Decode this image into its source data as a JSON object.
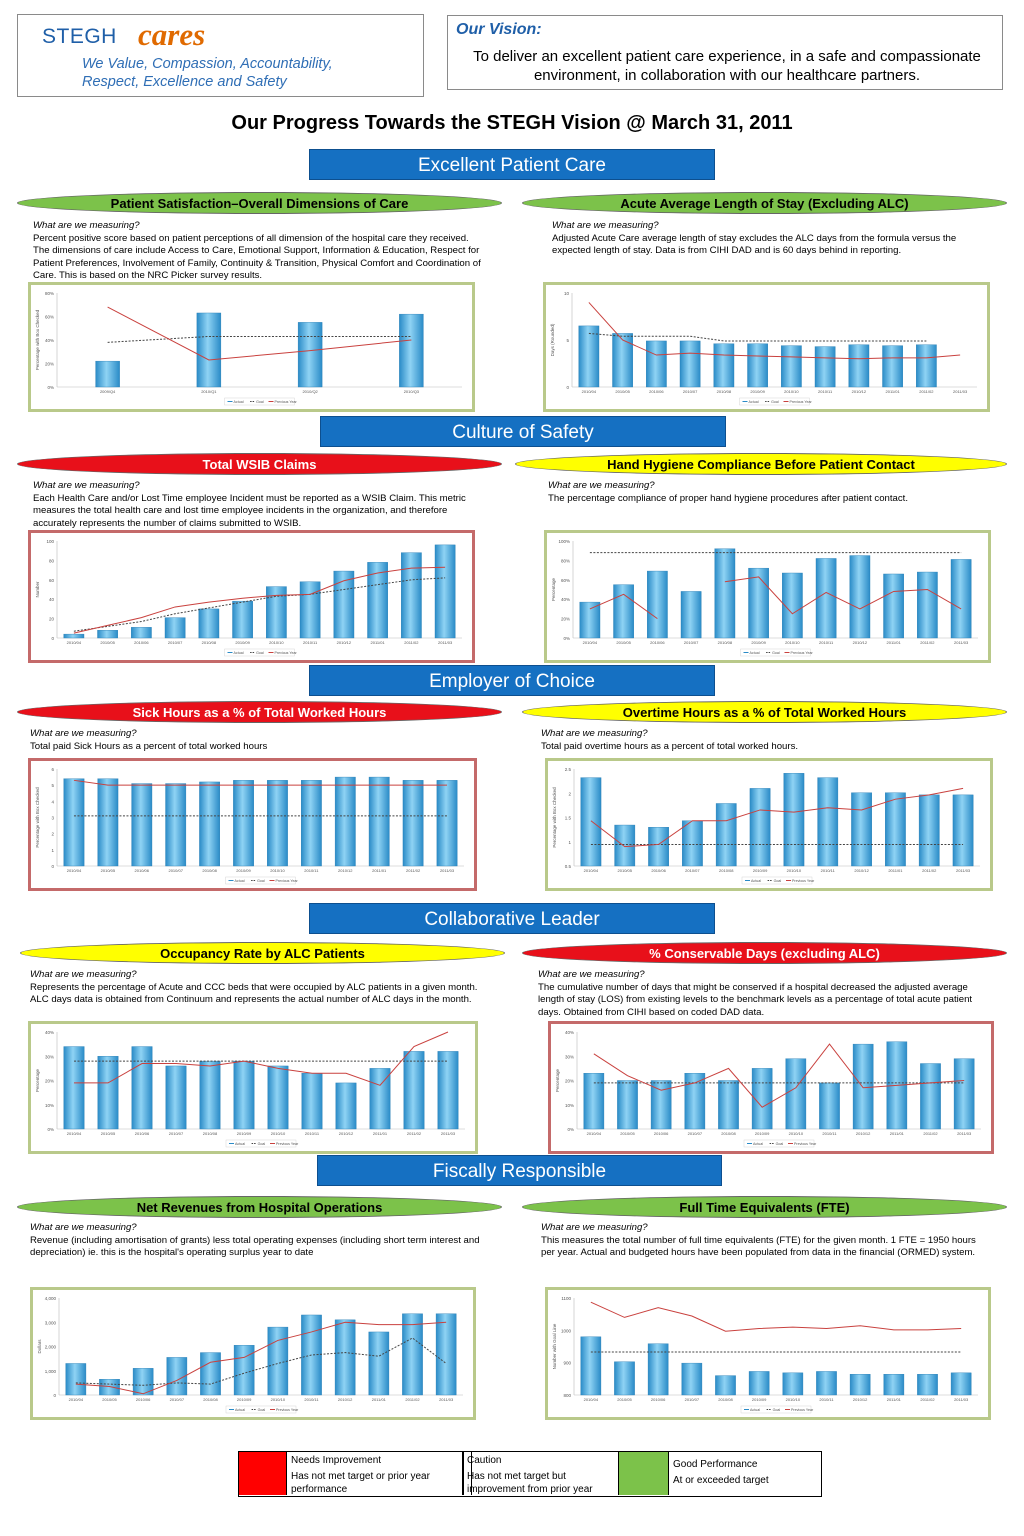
{
  "header": {
    "logo_stegh": "STEGH",
    "logo_cares": "cares",
    "tagline_line1": "We Value, Compassion, Accountability,",
    "tagline_line2": "Respect, Excellence and Safety",
    "vision_title": "Our Vision:",
    "vision_text": "To deliver an excellent patient care experience, in a safe and compassionate environment, in collaboration with our healthcare partners.",
    "page_title": "Our Progress Towards the STEGH Vision @ March 31, 2011"
  },
  "sections": {
    "excellent": "Excellent Patient Care",
    "safety": "Culture of Safety",
    "employer": "Employer of Choice",
    "collaborative": "Collaborative Leader",
    "fiscal": "Fiscally Responsible"
  },
  "measuring_label": "What are we measuring?",
  "panels": {
    "ps": {
      "title": "Patient Satisfaction–Overall Dimensions of Care",
      "status": "green",
      "desc": "Percent positive score based on patient perceptions of all dimension of the hospital care they received.  The dimensions of care include Access to Care, Emotional Support, Information & Education, Respect for Patient Preferences, Involvement of Family, Continuity & Transition, Physical Comfort and Coordination of Care.  This is based on the NRC Picker survey results."
    },
    "alos": {
      "title": "Acute Average Length of Stay (Excluding ALC)",
      "status": "green",
      "desc": "Adjusted Acute Care average length of stay excludes the ALC days from the formula versus the expected length of stay.  Data is from CIHI DAD and is 60 days behind in reporting."
    },
    "wsib": {
      "title": "Total WSIB Claims",
      "status": "red",
      "desc": "Each Health Care and/or Lost Time employee Incident must be reported as a WSIB Claim.  This metric measures the total health care and lost time employee incidents in the organization, and therefore accurately represents the number of claims submitted to WSIB."
    },
    "hh": {
      "title": "Hand Hygiene Compliance Before Patient Contact",
      "status": "yellow",
      "desc": "The percentage compliance of proper hand hygiene procedures after patient contact."
    },
    "sick": {
      "title": "Sick Hours as a % of Total Worked Hours",
      "status": "red",
      "desc": "Total paid Sick Hours as a percent of total worked hours"
    },
    "ot": {
      "title": "Overtime Hours as a % of Total Worked Hours",
      "status": "yellow",
      "desc": "Total paid overtime hours as a percent of total worked hours."
    },
    "alc": {
      "title": "Occupancy Rate by ALC Patients",
      "status": "yellow",
      "desc": "Represents the percentage of Acute and CCC beds that were occupied by ALC patients in a given month.  ALC days data is obtained from Continuum and represents the actual number of ALC days in the month."
    },
    "cons": {
      "title": "% Conservable Days (excluding ALC)",
      "status": "red",
      "desc": "The cumulative number of days that might be conserved if a hospital decreased the adjusted average length of stay (LOS) from existing levels to the benchmark levels as a percentage of total acute patient days.  Obtained from CIHI based on coded DAD data."
    },
    "rev": {
      "title": "Net Revenues from Hospital Operations",
      "status": "green",
      "desc": "Revenue (including amortisation of grants) less total operating expenses (including short term interest and depreciation) ie. this is the hospital's operating surplus year to date"
    },
    "fte": {
      "title": "Full Time Equivalents (FTE)",
      "status": "green",
      "desc": "This measures the total number of full time equivalents (FTE) for the given month.  1 FTE = 1950 hours per year.  Actual and budgeted hours have been populated from data in the financial (ORMED) system."
    }
  },
  "chart_data": [
    {
      "id": "ps",
      "type": "bar",
      "categories": [
        "2009/Q4",
        "2010/Q1",
        "2010/Q2",
        "2010/Q3"
      ],
      "values": [
        0.22,
        0.63,
        0.55,
        0.62
      ],
      "goal": [
        0.38,
        0.43,
        0.43,
        0.43
      ],
      "previous_year": [
        0.68,
        0.23,
        0.31,
        0.4
      ],
      "ylim": [
        0,
        0.8
      ],
      "yticks": [
        "0%",
        "20%",
        "40%",
        "60%",
        "80%"
      ],
      "ylabel": "Percentage with Box Checked",
      "legend": [
        "Actual",
        "Goal",
        "Previous Year"
      ]
    },
    {
      "id": "alos",
      "type": "bar",
      "categories": [
        "2010/04",
        "2010/05",
        "2010/06",
        "2010/07",
        "2010/08",
        "2010/09",
        "2010/10",
        "2010/11",
        "2010/12",
        "2011/01",
        "2011/02",
        "2011/03"
      ],
      "values": [
        6.5,
        5.7,
        4.9,
        4.9,
        4.6,
        4.6,
        4.4,
        4.3,
        4.5,
        4.4,
        4.5,
        null
      ],
      "goal": [
        5.7,
        5.4,
        5.4,
        5.4,
        4.9,
        4.9,
        4.9,
        4.9,
        4.9,
        4.9,
        4.9,
        null
      ],
      "previous_year": [
        9.0,
        5.0,
        3.4,
        3.6,
        3.4,
        3.3,
        3.2,
        3.1,
        3.0,
        3.1,
        3.1,
        3.4
      ],
      "ylim": [
        0,
        10
      ],
      "yticks": [
        "0",
        "5",
        "10"
      ],
      "ylabel": "Days (Rounded)",
      "legend": [
        "Actual",
        "Goal",
        "Previous Year"
      ]
    },
    {
      "id": "wsib",
      "type": "bar",
      "categories": [
        "2010/04",
        "2010/05",
        "2010/06",
        "2010/07",
        "2010/08",
        "2010/09",
        "2010/10",
        "2010/11",
        "2010/12",
        "2011/01",
        "2011/02",
        "2011/03"
      ],
      "values": [
        4,
        8,
        11,
        21,
        30,
        38,
        53,
        58,
        69,
        78,
        88,
        96
      ],
      "goal": [
        7,
        12,
        17,
        25,
        31,
        37,
        43,
        45,
        50,
        55,
        60,
        62
      ],
      "previous_year": [
        5,
        13,
        21,
        32,
        37,
        41,
        44,
        45,
        59,
        67,
        72,
        73
      ],
      "ylim": [
        0,
        100
      ],
      "yticks": [
        "0",
        "20",
        "40",
        "60",
        "80",
        "100"
      ],
      "ylabel": "Number",
      "legend": [
        "Actual",
        "Goal",
        "Previous Year"
      ]
    },
    {
      "id": "hh",
      "type": "bar",
      "categories": [
        "2010/04",
        "2010/05",
        "2010/06",
        "2010/07",
        "2010/08",
        "2010/09",
        "2010/10",
        "2010/11",
        "2010/12",
        "2011/01",
        "2011/02",
        "2011/03"
      ],
      "values": [
        0.37,
        0.55,
        0.69,
        0.48,
        0.92,
        0.72,
        0.67,
        0.82,
        0.85,
        0.66,
        0.68,
        0.81
      ],
      "goal": [
        0.88,
        0.88,
        0.88,
        0.88,
        0.88,
        0.88,
        0.88,
        0.88,
        0.88,
        0.88,
        0.88,
        0.88
      ],
      "previous_year": [
        0.3,
        0.45,
        0.2,
        null,
        0.58,
        0.63,
        0.25,
        0.47,
        0.3,
        0.48,
        0.5,
        0.3
      ],
      "ylim": [
        0,
        1
      ],
      "yticks": [
        "0%",
        "20%",
        "40%",
        "60%",
        "80%",
        "100%"
      ],
      "ylabel": "Percentage",
      "legend": [
        "Actual",
        "Goal",
        "Previous Year"
      ]
    },
    {
      "id": "sick",
      "type": "bar",
      "categories": [
        "2010/04",
        "2010/05",
        "2010/06",
        "2010/07",
        "2010/08",
        "2010/09",
        "2010/10",
        "2010/11",
        "2010/12",
        "2011/01",
        "2011/02",
        "2011/03"
      ],
      "values": [
        5.4,
        5.4,
        5.1,
        5.1,
        5.2,
        5.3,
        5.3,
        5.3,
        5.5,
        5.5,
        5.3,
        5.3
      ],
      "goal": [
        3.1,
        3.1,
        3.1,
        3.1,
        3.1,
        3.1,
        3.1,
        3.1,
        3.1,
        3.1,
        3.1,
        3.1
      ],
      "previous_year": [
        5.3,
        5.0,
        5.0,
        5.0,
        5.0,
        5.0,
        5.0,
        5.0,
        5.0,
        5.0,
        5.0,
        5.0
      ],
      "ylim": [
        0,
        6
      ],
      "yticks": [
        "0",
        "1",
        "2",
        "3",
        "4",
        "5",
        "6"
      ],
      "ylabel": "Percentage with Box Checked",
      "legend": [
        "Actual",
        "Goal",
        "Previous Year"
      ]
    },
    {
      "id": "ot",
      "type": "bar",
      "categories": [
        "2010/04",
        "2010/05",
        "2010/06",
        "2010/07",
        "2010/08",
        "2010/09",
        "2010/10",
        "2010/11",
        "2010/12",
        "2011/01",
        "2011/02",
        "2011/03"
      ],
      "values": [
        2.55,
        1.45,
        1.4,
        1.55,
        1.95,
        2.3,
        2.65,
        2.55,
        2.2,
        2.2,
        2.15,
        2.15
      ],
      "goal": [
        1.0,
        1.0,
        1.0,
        1.0,
        1.0,
        1.0,
        1.0,
        1.0,
        1.0,
        1.0,
        1.0,
        1.0
      ],
      "previous_year": [
        1.55,
        0.95,
        1.0,
        1.55,
        1.55,
        1.8,
        1.75,
        1.85,
        1.8,
        2.05,
        2.15,
        2.3
      ],
      "ylim": [
        0.5,
        2.75
      ],
      "yticks": [
        "0.5",
        "1",
        "1.5",
        "2",
        "2.5"
      ],
      "ylabel": "Percentage with Box Checked",
      "legend": [
        "Actual",
        "Goal",
        "Previous Year"
      ]
    },
    {
      "id": "alc",
      "type": "bar",
      "categories": [
        "2010/04",
        "2010/05",
        "2010/06",
        "2010/07",
        "2010/08",
        "2010/09",
        "2010/10",
        "2010/11",
        "2010/12",
        "2011/01",
        "2011/02",
        "2011/03"
      ],
      "values": [
        0.34,
        0.3,
        0.34,
        0.26,
        0.28,
        0.28,
        0.26,
        0.23,
        0.19,
        0.25,
        0.32,
        0.32
      ],
      "goal": [
        0.28,
        0.28,
        0.28,
        0.28,
        0.28,
        0.28,
        0.28,
        0.28,
        0.28,
        0.28,
        0.28,
        0.28
      ],
      "previous_year": [
        0.19,
        0.19,
        0.27,
        0.27,
        0.26,
        0.28,
        0.25,
        0.23,
        0.23,
        0.18,
        0.34,
        0.4
      ],
      "ylim": [
        0,
        0.4
      ],
      "yticks": [
        "0%",
        "10%",
        "20%",
        "30%",
        "40%"
      ],
      "ylabel": "Percentage",
      "legend": [
        "Actual",
        "Goal",
        "Previous Year"
      ]
    },
    {
      "id": "cons",
      "type": "bar",
      "categories": [
        "2010/04",
        "2010/05",
        "2010/06",
        "2010/07",
        "2010/08",
        "2010/09",
        "2010/10",
        "2010/11",
        "2010/12",
        "2011/01",
        "2011/02",
        "2011/03"
      ],
      "values": [
        0.23,
        0.2,
        0.2,
        0.23,
        0.2,
        0.25,
        0.29,
        0.19,
        0.35,
        0.36,
        0.27,
        0.29
      ],
      "goal": [
        0.19,
        0.19,
        0.19,
        0.19,
        0.19,
        0.19,
        0.19,
        0.19,
        0.19,
        0.19,
        0.19,
        0.19
      ],
      "previous_year": [
        0.31,
        0.22,
        0.16,
        0.19,
        0.25,
        0.09,
        0.17,
        0.35,
        0.17,
        0.18,
        0.19,
        0.2
      ],
      "ylim": [
        0,
        0.4
      ],
      "yticks": [
        "0%",
        "10%",
        "20%",
        "30%",
        "40%"
      ],
      "ylabel": "Percentage",
      "legend": [
        "Actual",
        "Goal",
        "Previous Year"
      ]
    },
    {
      "id": "rev",
      "type": "bar",
      "categories": [
        "2010/04",
        "2010/05",
        "2010/06",
        "2010/07",
        "2010/08",
        "2010/09",
        "2010/10",
        "2010/11",
        "2010/12",
        "2011/01",
        "2011/02",
        "2011/03"
      ],
      "values": [
        1300,
        650,
        1100,
        1550,
        1750,
        2050,
        2800,
        3300,
        3100,
        2600,
        3350,
        3350
      ],
      "goal": [
        500,
        450,
        400,
        500,
        450,
        900,
        1300,
        1650,
        1750,
        1600,
        2350,
        1300
      ],
      "previous_year": [
        450,
        350,
        50,
        600,
        1350,
        1550,
        2250,
        2600,
        3000,
        2900,
        2900,
        3000
      ],
      "ylim": [
        0,
        4000
      ],
      "yticks": [
        "0",
        "1,000",
        "2,000",
        "3,000",
        "4,000"
      ],
      "ylabel": "Dollars",
      "legend": [
        "Actual",
        "Goal",
        "Previous Year"
      ]
    },
    {
      "id": "fte",
      "type": "bar",
      "categories": [
        "2010/04",
        "2010/05",
        "2010/06",
        "2010/07",
        "2010/08",
        "2010/09",
        "2010/10",
        "2010/11",
        "2010/12",
        "2011/01",
        "2011/02",
        "2011/03"
      ],
      "values": [
        1010,
        920,
        985,
        915,
        870,
        885,
        880,
        885,
        875,
        875,
        875,
        880
      ],
      "goal": [
        955,
        955,
        955,
        955,
        955,
        955,
        955,
        955,
        955,
        955,
        955,
        955
      ],
      "previous_year": [
        1135,
        1080,
        1115,
        1085,
        1030,
        1040,
        1045,
        1040,
        1050,
        1035,
        1035,
        1040
      ],
      "ylim": [
        800,
        1150
      ],
      "yticks": [
        "800",
        "900",
        "1000",
        "1100"
      ],
      "ylabel": "Number with Goal Line",
      "legend": [
        "Actual",
        "Goal",
        "Previous Year"
      ]
    }
  ],
  "legend": {
    "red_title": "Needs Improvement",
    "red_desc": "Has not met target or prior year performance",
    "yellow_title": "Caution",
    "yellow_desc": "Has not met target but improvement  from prior year",
    "green_title": "Good Performance",
    "green_desc": "At or exceeded target",
    "colors": {
      "red": "#ff0000",
      "yellow": "#ffff00",
      "green": "#7cc24a"
    }
  }
}
